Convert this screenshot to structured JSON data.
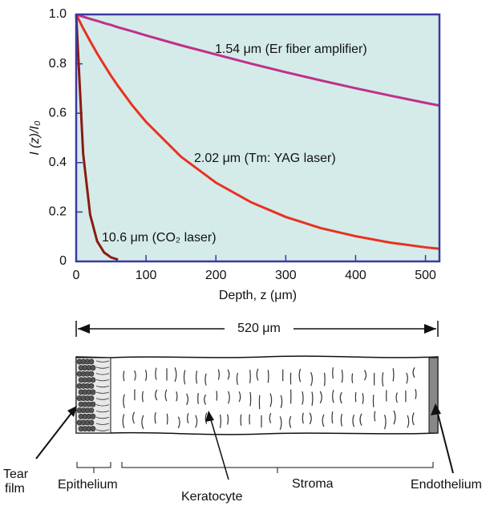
{
  "chart_data": {
    "type": "line",
    "x": [
      0,
      10,
      20,
      30,
      40,
      50,
      60,
      80,
      100,
      150,
      200,
      250,
      300,
      350,
      400,
      450,
      500,
      520
    ],
    "series": [
      {
        "name": "1.54 μm (Er fiber amplifier)",
        "color": "#c0308a",
        "values": [
          1,
          0.991,
          0.982,
          0.974,
          0.965,
          0.957,
          0.948,
          0.932,
          0.915,
          0.875,
          0.838,
          0.801,
          0.766,
          0.733,
          0.701,
          0.671,
          0.642,
          0.631
        ]
      },
      {
        "name": "2.02 μm (Tm: YAG laser)",
        "color": "#e8321e",
        "values": [
          1,
          0.944,
          0.892,
          0.842,
          0.796,
          0.751,
          0.71,
          0.633,
          0.565,
          0.424,
          0.319,
          0.24,
          0.18,
          0.135,
          0.102,
          0.076,
          0.057,
          0.051
        ]
      },
      {
        "name": "10.6 μm (CO₂ laser)",
        "color": "#8b1a10",
        "values": [
          1,
          0.435,
          0.189,
          0.082,
          0.036,
          0.016,
          0.007,
          null,
          null,
          null,
          null,
          null,
          null,
          null,
          null,
          null,
          null,
          null
        ]
      }
    ],
    "xlabel": "Depth, z (μm)",
    "ylabel": "I (z)/I₀",
    "xlim": [
      0,
      520
    ],
    "ylim": [
      0,
      1
    ],
    "xticks": [
      0,
      100,
      200,
      300,
      400,
      500
    ],
    "yticks": [
      0,
      0.2,
      0.4,
      0.6,
      0.8,
      {
        "value": 1,
        "label": "1.0"
      }
    ],
    "background": "#d4ebea",
    "frame_color": "#3a3aa0"
  },
  "diagram": {
    "thickness": "520 μm",
    "labels": [
      "Tear",
      "film",
      "Epithelium",
      "Keratocyte",
      "Stroma",
      "Endothelium"
    ]
  }
}
